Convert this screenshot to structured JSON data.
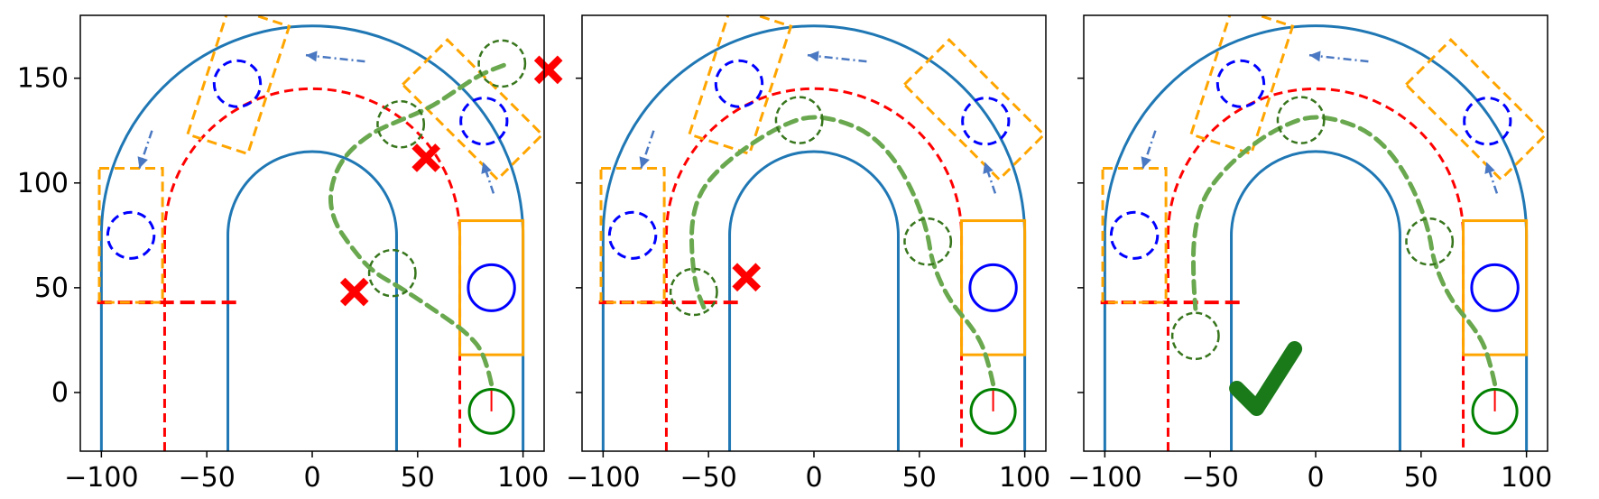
{
  "colors": {
    "track_outer": "#1f77b4",
    "center_line": "#ff0000",
    "vehicle_box": "#ffa500",
    "ego_circle": "#0000ff",
    "start_circle": "#008000",
    "planned_path": "#6aa84f",
    "waypoint_circle": "#38761d",
    "fail_mark": "#ff0000",
    "success_mark": "#1a7a1a",
    "motion_arrow": "#4a78c2"
  },
  "axes": {
    "xlim": [
      -110,
      110
    ],
    "ylim": [
      -28,
      180
    ],
    "x_ticks": [
      -100,
      -50,
      0,
      50,
      100
    ],
    "x_tick_labels": [
      "−100",
      "−50",
      "0",
      "50",
      "100"
    ],
    "y_ticks": [
      0,
      50,
      100,
      150
    ],
    "y_tick_labels": [
      "0",
      "50",
      "100",
      "150"
    ]
  },
  "panels": [
    {
      "id": "panel-1",
      "outcome": "failure",
      "path": [
        [
          85,
          4
        ],
        [
          82,
          18
        ],
        [
          74,
          28
        ],
        [
          60,
          38
        ],
        [
          42,
          50
        ],
        [
          28,
          58
        ],
        [
          18,
          70
        ],
        [
          10,
          82
        ],
        [
          8,
          96
        ],
        [
          14,
          112
        ],
        [
          28,
          124
        ],
        [
          42,
          130
        ],
        [
          56,
          136
        ],
        [
          68,
          144
        ],
        [
          80,
          152
        ],
        [
          93,
          157
        ]
      ],
      "waypoints": [
        [
          38,
          57
        ],
        [
          42,
          128
        ],
        [
          90,
          157
        ]
      ],
      "fail_marks": [
        [
          20,
          48
        ],
        [
          54,
          112
        ],
        [
          112,
          154
        ]
      ]
    },
    {
      "id": "panel-2",
      "outcome": "failure",
      "path": [
        [
          85,
          4
        ],
        [
          82,
          18
        ],
        [
          76,
          30
        ],
        [
          64,
          44
        ],
        [
          56,
          62
        ],
        [
          54,
          76
        ],
        [
          48,
          94
        ],
        [
          38,
          112
        ],
        [
          26,
          124
        ],
        [
          12,
          130
        ],
        [
          -2,
          132
        ],
        [
          -14,
          128
        ],
        [
          -28,
          120
        ],
        [
          -44,
          108
        ],
        [
          -54,
          96
        ],
        [
          -58,
          82
        ],
        [
          -58,
          66
        ],
        [
          -56,
          50
        ],
        [
          -52,
          40
        ]
      ],
      "waypoints": [
        [
          54,
          72
        ],
        [
          -7,
          130
        ],
        [
          -57,
          48
        ]
      ],
      "fail_marks": [
        [
          -32,
          55
        ]
      ]
    },
    {
      "id": "panel-3",
      "outcome": "success",
      "path": [
        [
          85,
          4
        ],
        [
          82,
          18
        ],
        [
          76,
          30
        ],
        [
          64,
          44
        ],
        [
          56,
          62
        ],
        [
          54,
          76
        ],
        [
          48,
          94
        ],
        [
          38,
          112
        ],
        [
          26,
          124
        ],
        [
          12,
          130
        ],
        [
          -2,
          132
        ],
        [
          -14,
          128
        ],
        [
          -28,
          120
        ],
        [
          -44,
          106
        ],
        [
          -54,
          92
        ],
        [
          -58,
          74
        ],
        [
          -58,
          54
        ],
        [
          -57,
          40
        ]
      ],
      "waypoints": [
        [
          54,
          72
        ],
        [
          -7,
          130
        ],
        [
          -57,
          27
        ]
      ],
      "success_mark": [
        -22,
        20
      ]
    }
  ]
}
